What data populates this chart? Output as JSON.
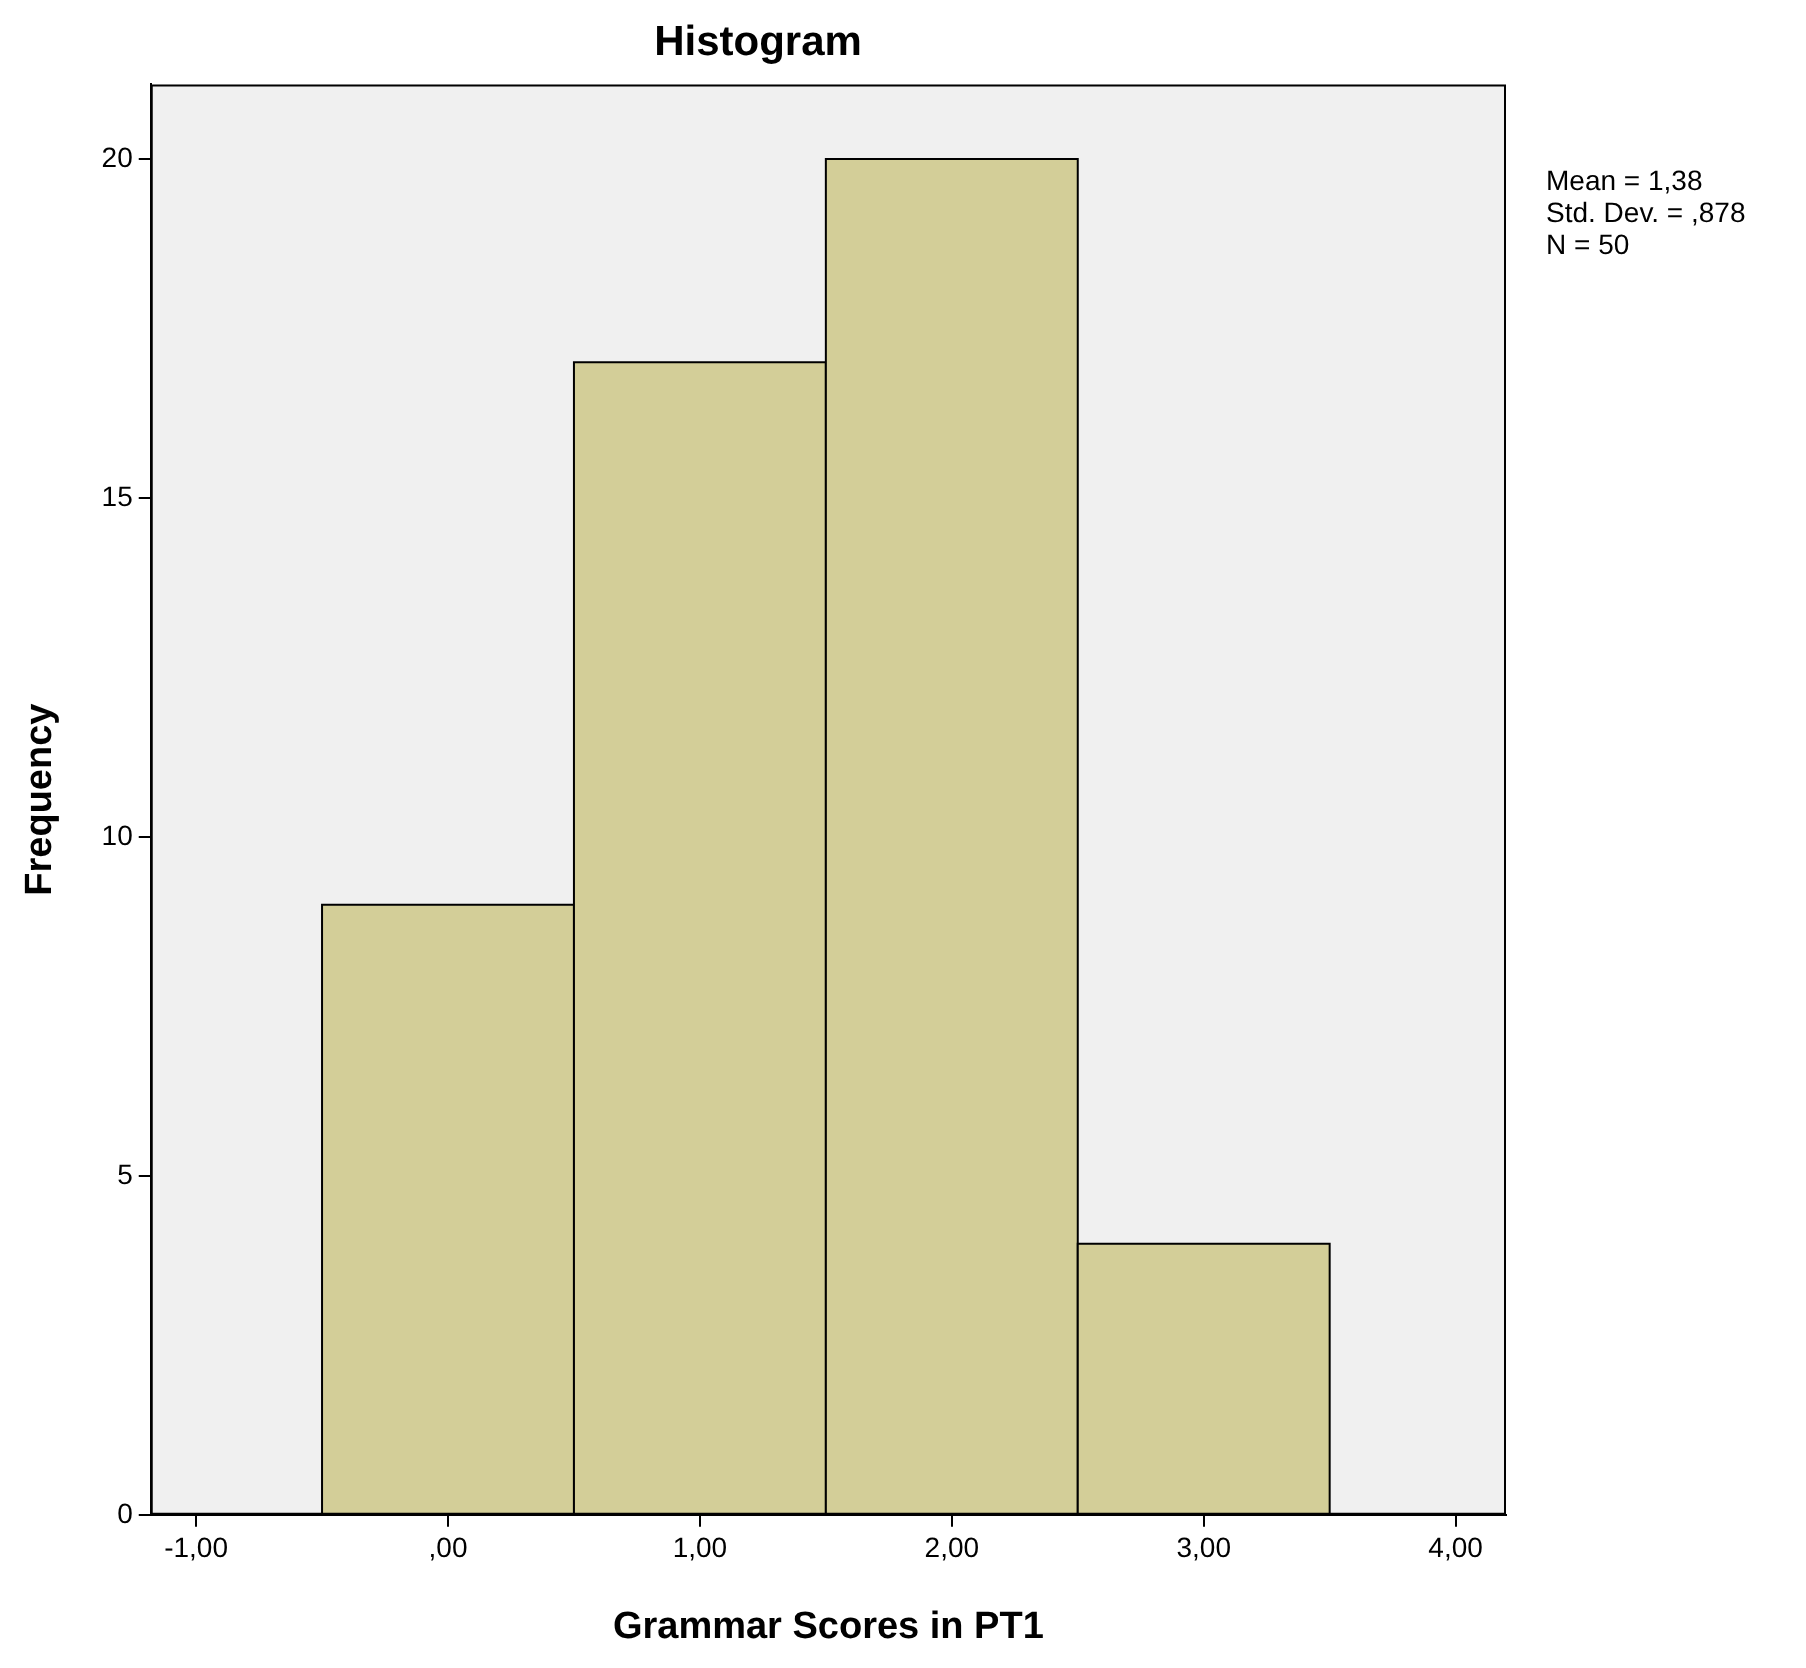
{
  "chart_data": {
    "type": "histogram",
    "title": "Histogram",
    "xlabel": "Grammar Scores in PT1",
    "ylabel": "Frequency",
    "bins": [
      -0.5,
      0.5,
      1.5,
      2.5,
      3.5
    ],
    "values": [
      9,
      17,
      20,
      4
    ],
    "color": "#d3ce98",
    "xlim": [
      -1.18,
      4.2
    ],
    "xticks": [
      {
        "value": -1,
        "label": "-1,00"
      },
      {
        "value": 0,
        "label": ",00"
      },
      {
        "value": 1,
        "label": "1,00"
      },
      {
        "value": 2,
        "label": "2,00"
      },
      {
        "value": 3,
        "label": "3,00"
      },
      {
        "value": 4,
        "label": "4,00"
      }
    ],
    "ylim": [
      0,
      21.1
    ],
    "yticks": [
      0,
      5,
      10,
      15,
      20
    ],
    "grid": false,
    "legend": false,
    "annotations": [
      "Mean = 1,38",
      "Std. Dev. = ,878",
      "N = 50"
    ]
  }
}
